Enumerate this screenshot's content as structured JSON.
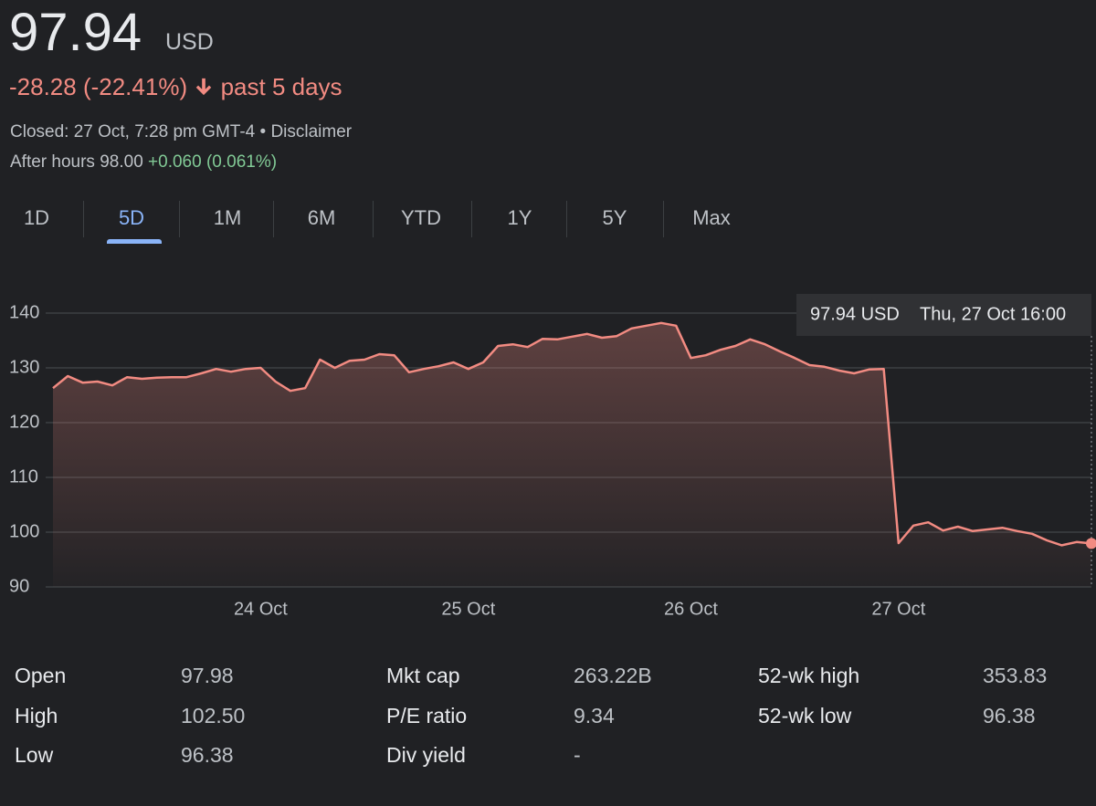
{
  "header": {
    "price": "97.94",
    "currency": "USD",
    "change": "-28.28 (-22.41%)",
    "period": "past 5 days",
    "status": "Closed: 27 Oct, 7:28 pm GMT-4",
    "separator": "•",
    "disclaimer": "Disclaimer",
    "after_hours": "After hours 98.00",
    "after_hours_change": "+0.060 (0.061%)"
  },
  "tabs": [
    "1D",
    "5D",
    "1M",
    "6M",
    "YTD",
    "1Y",
    "5Y",
    "Max"
  ],
  "active_tab": 1,
  "chart_data": {
    "type": "area",
    "color": "#f28b82",
    "grid": true,
    "categories": [
      null,
      null,
      null,
      null,
      null,
      null,
      null,
      null,
      null,
      null,
      null,
      null,
      null,
      null,
      "24 Oct",
      null,
      null,
      null,
      null,
      null,
      null,
      null,
      null,
      null,
      null,
      null,
      null,
      null,
      "25 Oct",
      null,
      null,
      null,
      null,
      null,
      null,
      null,
      null,
      null,
      null,
      null,
      null,
      null,
      null,
      "26 Oct",
      null,
      null,
      null,
      null,
      null,
      null,
      null,
      null,
      null,
      null,
      null,
      null,
      null,
      "27 Oct",
      null,
      null,
      null,
      null,
      null,
      null,
      null,
      null,
      null,
      null,
      null,
      null,
      null
    ],
    "values": [
      126.3,
      128.5,
      127.3,
      127.5,
      126.8,
      128.3,
      128,
      128.2,
      128.3,
      128.3,
      129,
      129.8,
      129.3,
      129.8,
      130,
      127.5,
      125.8,
      126.3,
      131.5,
      130,
      131.3,
      131.5,
      132.5,
      132.3,
      129.2,
      129.8,
      130.3,
      131,
      129.8,
      131,
      134,
      134.3,
      133.8,
      135.3,
      135.2,
      135.7,
      136.2,
      135.5,
      135.8,
      137.2,
      137.7,
      138.2,
      137.7,
      131.8,
      132.3,
      133.3,
      134,
      135.2,
      134.3,
      133,
      131.8,
      130.5,
      130.2,
      129.5,
      129,
      129.7,
      129.8,
      98,
      101.2,
      101.8,
      100.3,
      101,
      100.2,
      100.5,
      100.8,
      100.2,
      99.7,
      98.5,
      97.6,
      98.2,
      97.94
    ],
    "ylim": [
      90,
      140
    ],
    "yticks": [
      90,
      100,
      110,
      120,
      130,
      140
    ],
    "annotation": {
      "value": "97.94 USD",
      "time": "Thu, 27 Oct 16:00"
    }
  },
  "stats": [
    [
      "Open",
      "97.98"
    ],
    [
      "High",
      "102.50"
    ],
    [
      "Low",
      "96.38"
    ],
    [
      "Mkt cap",
      "263.22B"
    ],
    [
      "P/E ratio",
      "9.34"
    ],
    [
      "Div yield",
      "-"
    ],
    [
      "52-wk high",
      "353.83"
    ],
    [
      "52-wk low",
      "96.38"
    ]
  ]
}
